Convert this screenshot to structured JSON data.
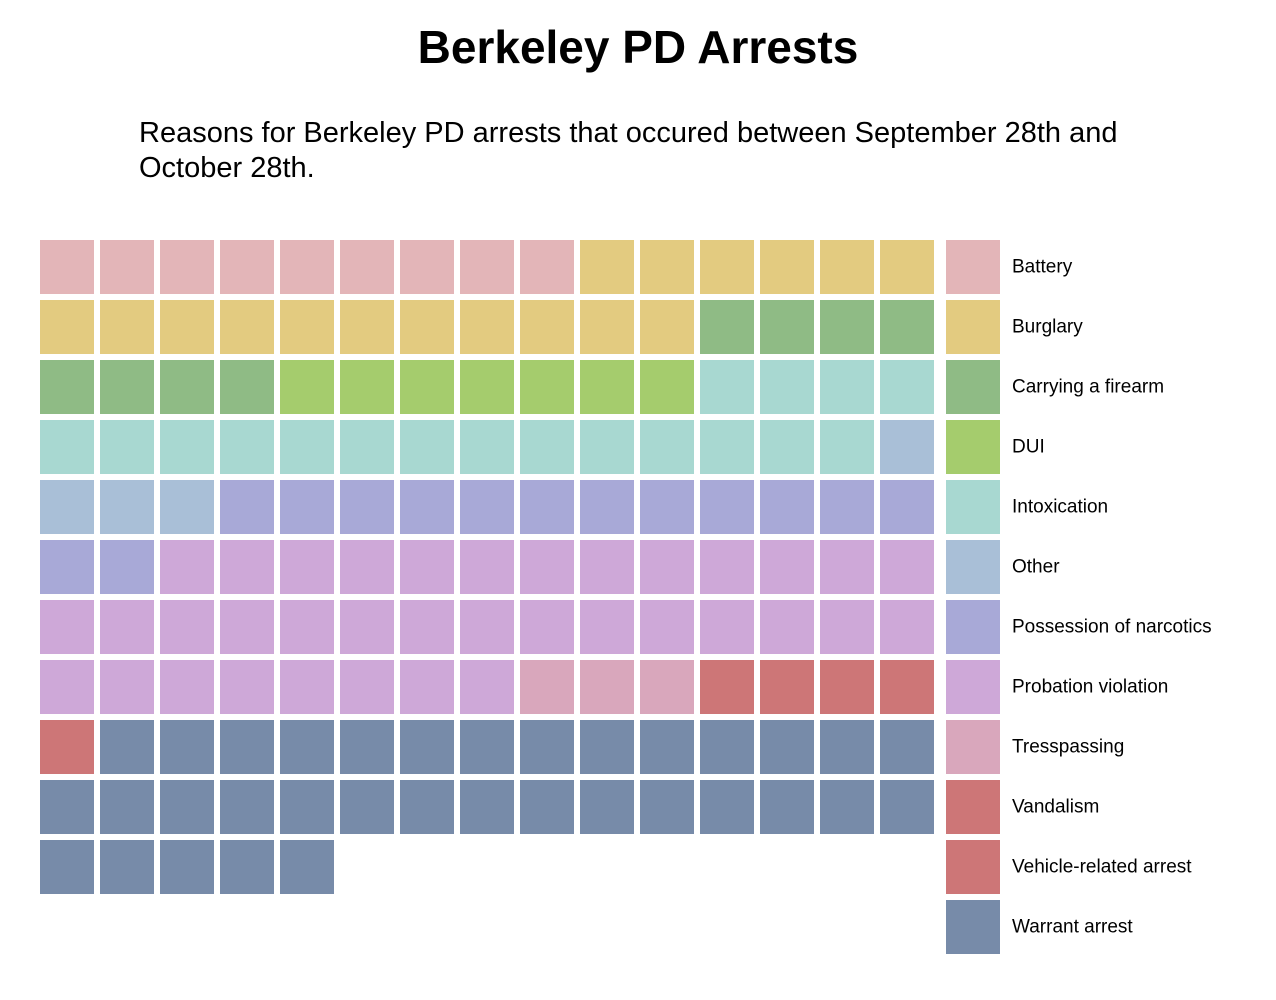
{
  "chart_data": {
    "type": "waffle",
    "title": "Berkeley PD Arrests",
    "subtitle": "Reasons for Berkeley PD arrests that occured between September 28th and October 28th.",
    "columns": 15,
    "unit": "arrest",
    "categories": [
      {
        "name": "Battery",
        "value": 9,
        "color": "#e3b5b8"
      },
      {
        "name": "Burglary",
        "value": 17,
        "color": "#e3cb80"
      },
      {
        "name": "Carrying a firearm",
        "value": 8,
        "color": "#8fbb85"
      },
      {
        "name": "DUI",
        "value": 7,
        "color": "#a5cc6d"
      },
      {
        "name": "Intoxication",
        "value": 18,
        "color": "#a8d8d1"
      },
      {
        "name": "Other",
        "value": 4,
        "color": "#a9bfd7"
      },
      {
        "name": "Possession of narcotics",
        "value": 14,
        "color": "#a8a9d7"
      },
      {
        "name": "Probation violation",
        "value": 36,
        "color": "#cea8d8"
      },
      {
        "name": "Tresspassing",
        "value": 3,
        "color": "#d9a7bc"
      },
      {
        "name": "Vandalism",
        "value": 5,
        "color": "#cd7677"
      },
      {
        "name": "Vehicle-related arrest",
        "value": 0,
        "color": "#cd7677"
      },
      {
        "name": "Warrant arrest",
        "value": 34,
        "color": "#778ba9"
      }
    ]
  }
}
